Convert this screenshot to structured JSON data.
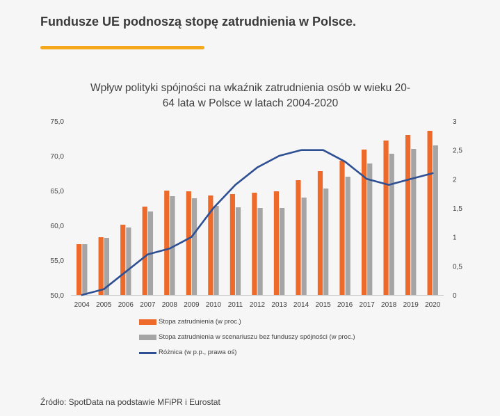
{
  "headline": "Fundusze UE podnoszą stopę zatrudnienia w Polsce.",
  "source": "Źródło: SpotData na podstawie MFiPR i Eurostat",
  "colors": {
    "accent": "#f5a81c",
    "orange": "#ee6a2a",
    "gray": "#a5a5a5",
    "blue": "#2f4f93"
  },
  "chart_data": {
    "type": "bar",
    "title_line1": "Wpływ polityki spójności na wkaźnik zatrudnienia osób w wieku 20-",
    "title_line2": "64 lata w Polsce w latach 2004-2020",
    "categories": [
      "2004",
      "2005",
      "2006",
      "2007",
      "2008",
      "2009",
      "2010",
      "2011",
      "2012",
      "2013",
      "2014",
      "2015",
      "2016",
      "2017",
      "2018",
      "2019",
      "2020"
    ],
    "series": [
      {
        "name": "Stopa zatrudnienia (w proc.)",
        "type": "bar",
        "axis": "left",
        "values": [
          57.3,
          58.3,
          60.1,
          62.7,
          65.0,
          64.9,
          64.3,
          64.5,
          64.7,
          64.9,
          66.5,
          67.8,
          69.3,
          70.9,
          72.2,
          73.0,
          73.6
        ]
      },
      {
        "name": "Stopa zatrudnienia w scenariuszu bez funduszy spójności (w proc.)",
        "type": "bar",
        "axis": "left",
        "values": [
          57.3,
          58.2,
          59.7,
          62.0,
          64.2,
          63.9,
          62.8,
          62.6,
          62.5,
          62.5,
          64.0,
          65.3,
          67.0,
          68.9,
          70.3,
          71.0,
          71.5
        ]
      },
      {
        "name": "Różnica (w p.p., prawa oś)",
        "type": "line",
        "axis": "right",
        "values": [
          0.0,
          0.1,
          0.4,
          0.7,
          0.8,
          1.0,
          1.5,
          1.9,
          2.2,
          2.4,
          2.5,
          2.5,
          2.3,
          2.0,
          1.9,
          2.0,
          2.1
        ]
      }
    ],
    "y_left": {
      "min": 50,
      "max": 75,
      "ticks": [
        "50,0",
        "55,0",
        "60,0",
        "65,0",
        "70,0",
        "75,0"
      ]
    },
    "y_right": {
      "min": 0,
      "max": 3,
      "ticks": [
        "0",
        "0,5",
        "1",
        "1,5",
        "2",
        "2,5",
        "3"
      ]
    },
    "grid": false,
    "legend_position": "bottom"
  }
}
